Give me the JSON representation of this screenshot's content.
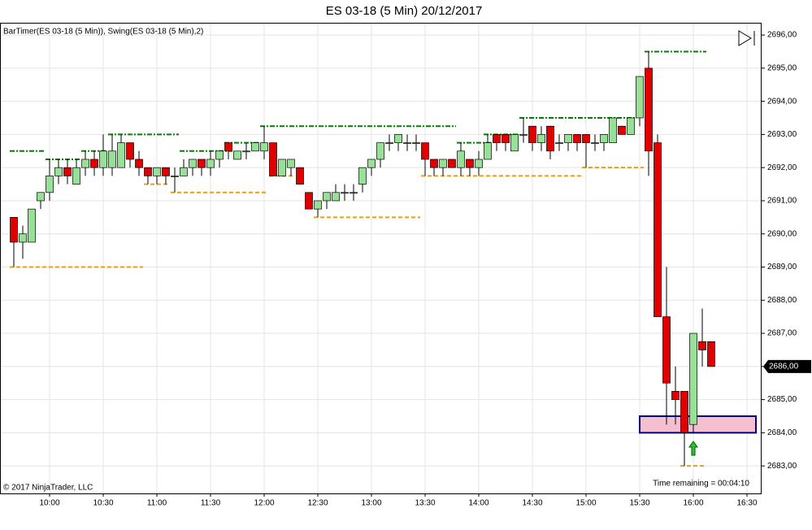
{
  "chart_data": {
    "type": "candlestick",
    "title": "ES 03-18 (5 Min)  20/12/2017",
    "indicator_label": "BarTimer(ES 03-18 (5 Min)), Swing(ES 03-18 (5 Min),2)",
    "copyright": "© 2017 NinjaTrader, LLC",
    "timer_text": "Time remaining = 00:04:10",
    "categories": [
      null,
      null,
      null,
      null,
      "10:00",
      null,
      null,
      null,
      null,
      null,
      "10:30",
      null,
      null,
      null,
      null,
      null,
      "11:00",
      null,
      null,
      null,
      null,
      null,
      "11:30",
      null,
      null,
      null,
      null,
      null,
      "12:00",
      null,
      null,
      null,
      null,
      null,
      "12:30",
      null,
      null,
      null,
      null,
      null,
      "13:00",
      null,
      null,
      null,
      null,
      null,
      "13:30",
      null,
      null,
      null,
      null,
      null,
      "14:00",
      null,
      null,
      null,
      null,
      null,
      "14:30",
      null,
      null,
      null,
      null,
      null,
      "15:00",
      null,
      null,
      null,
      null,
      null,
      "15:30",
      null,
      null,
      null,
      null,
      null,
      "16:00",
      null,
      null,
      null,
      null,
      null,
      "16:30"
    ],
    "open": [
      2690.5,
      2689.75,
      2689.75,
      2691.0,
      2691.25,
      2691.75,
      2692.0,
      2691.5,
      2692.0,
      2692.25,
      2692.0,
      2692.0,
      2692.0,
      2692.75,
      2692.25,
      2692.0,
      2691.75,
      2692.0,
      2691.75,
      2691.75,
      2692.0,
      2692.25,
      2692.0,
      2692.25,
      2692.75,
      2692.25,
      2692.5,
      2692.5,
      2692.5,
      2692.75,
      2691.75,
      2692.0,
      2692.0,
      2691.25,
      2690.75,
      2691.0,
      2691.0,
      2691.25,
      2691.25,
      2691.5,
      2692.0,
      2692.25,
      2692.75,
      2692.75,
      2692.75,
      2692.75,
      2692.75,
      2692.25,
      2692.0,
      2692.25,
      2692.0,
      2692.25,
      2692.0,
      2692.25,
      2693.0,
      2693.0,
      2692.5,
      2693.0,
      2693.25,
      2692.75,
      2693.25,
      2692.75,
      2692.75,
      2693.0,
      2693.0,
      2692.75,
      2692.75,
      2692.75,
      2693.25,
      2693.0,
      2693.5,
      2695.0,
      2692.75,
      2687.5,
      2685.25,
      2685.25,
      2684.25,
      2686.75,
      2686.75,
      null,
      null,
      null,
      null
    ],
    "high": [
      2690.5,
      2690.25,
      2690.75,
      2691.25,
      2692.25,
      2692.25,
      2692.25,
      2692.25,
      2692.5,
      2692.5,
      2693.0,
      2693.0,
      2693.0,
      2692.75,
      2692.5,
      2692.0,
      2692.0,
      2692.0,
      2692.0,
      2692.25,
      2692.25,
      2692.25,
      2692.5,
      2692.5,
      2692.75,
      2692.5,
      2692.75,
      2692.75,
      2693.25,
      2692.75,
      2692.25,
      2692.25,
      2692.0,
      2691.25,
      2691.0,
      2691.25,
      2691.5,
      2691.5,
      2691.5,
      2692.0,
      2692.25,
      2692.75,
      2693.0,
      2693.0,
      2693.0,
      2693.0,
      2692.75,
      2692.25,
      2692.25,
      2692.25,
      2692.75,
      2692.25,
      2692.5,
      2693.0,
      2693.0,
      2693.0,
      2693.0,
      2693.5,
      2693.25,
      2693.25,
      2693.25,
      2693.0,
      2693.0,
      2693.0,
      2693.0,
      2693.0,
      2693.0,
      2693.5,
      2693.25,
      2693.5,
      2694.75,
      2695.5,
      2693.0,
      2689.0,
      2686.0,
      2685.25,
      2687.0,
      2687.75,
      2686.75,
      null,
      null,
      null,
      null
    ],
    "low": [
      2689.0,
      2689.25,
      2689.75,
      2690.75,
      2691.0,
      2691.5,
      2691.5,
      2691.5,
      2691.75,
      2691.75,
      2691.75,
      2691.75,
      2692.0,
      2692.0,
      2691.75,
      2691.5,
      2691.5,
      2691.5,
      2691.25,
      2691.75,
      2691.75,
      2691.75,
      2691.75,
      2692.0,
      2692.25,
      2692.25,
      2692.25,
      2692.5,
      2692.25,
      2691.75,
      2691.75,
      2691.75,
      2691.5,
      2690.75,
      2690.5,
      2690.75,
      2691.0,
      2691.0,
      2691.0,
      2691.25,
      2691.75,
      2692.0,
      2692.5,
      2692.5,
      2692.5,
      2692.5,
      2691.75,
      2691.75,
      2691.75,
      2692.0,
      2691.75,
      2691.75,
      2691.75,
      2692.25,
      2692.5,
      2692.5,
      2692.5,
      2692.75,
      2692.5,
      2692.5,
      2692.25,
      2692.5,
      2692.5,
      2692.5,
      2692.0,
      2692.5,
      2692.5,
      2692.75,
      2693.0,
      2693.0,
      2693.25,
      2691.75,
      2687.5,
      2684.25,
      2684.25,
      2683.0,
      2684.0,
      2686.0,
      2686.0,
      null,
      null,
      null,
      null
    ],
    "close": [
      2689.75,
      2690.0,
      2690.75,
      2691.25,
      2691.75,
      2692.0,
      2691.75,
      2692.0,
      2692.25,
      2692.0,
      2692.5,
      2692.5,
      2692.75,
      2692.25,
      2692.0,
      2691.75,
      2692.0,
      2691.75,
      2691.75,
      2692.0,
      2692.25,
      2692.0,
      2692.25,
      2692.5,
      2692.5,
      2692.5,
      2692.5,
      2692.75,
      2692.75,
      2691.75,
      2692.25,
      2692.25,
      2691.5,
      2690.75,
      2691.0,
      2691.25,
      2691.25,
      2691.25,
      2691.25,
      2692.0,
      2692.25,
      2692.75,
      2692.75,
      2693.0,
      2692.75,
      2692.75,
      2692.25,
      2692.0,
      2692.25,
      2692.0,
      2692.5,
      2692.0,
      2692.25,
      2692.75,
      2692.75,
      2692.75,
      2693.0,
      2693.0,
      2692.75,
      2693.0,
      2692.5,
      2692.75,
      2693.0,
      2692.75,
      2692.75,
      2692.75,
      2693.0,
      2693.5,
      2693.0,
      2693.5,
      2694.75,
      2692.5,
      2687.5,
      2685.5,
      2685.0,
      2684.0,
      2687.0,
      2686.5,
      2686.0,
      null,
      null,
      null,
      null
    ],
    "up_color": "#98e098",
    "down_color": "#e00000",
    "swing_highs": [
      {
        "value": 2692.5,
        "start_index": 0,
        "end_index": 3
      },
      {
        "value": 2692.25,
        "start_index": 4,
        "end_index": 7
      },
      {
        "value": 2692.5,
        "start_index": 8,
        "end_index": 10
      },
      {
        "value": 2693.0,
        "start_index": 11,
        "end_index": 18
      },
      {
        "value": 2692.5,
        "start_index": 19,
        "end_index": 24
      },
      {
        "value": 2692.75,
        "start_index": 24,
        "end_index": 27
      },
      {
        "value": 2693.25,
        "start_index": 28,
        "end_index": 49
      },
      {
        "value": 2692.75,
        "start_index": 50,
        "end_index": 53
      },
      {
        "value": 2693.0,
        "start_index": 53,
        "end_index": 56
      },
      {
        "value": 2693.5,
        "start_index": 57,
        "end_index": 69
      },
      {
        "value": 2695.5,
        "start_index": 71,
        "end_index": 77
      }
    ],
    "swing_lows": [
      {
        "value": 2689.0,
        "start_index": 0,
        "end_index": 14
      },
      {
        "value": 2691.5,
        "start_index": 15,
        "end_index": 17
      },
      {
        "value": 2691.25,
        "start_index": 18,
        "end_index": 28
      },
      {
        "value": 2691.75,
        "start_index": 29,
        "end_index": 31
      },
      {
        "value": 2690.5,
        "start_index": 34,
        "end_index": 45
      },
      {
        "value": 2691.75,
        "start_index": 46,
        "end_index": 63
      },
      {
        "value": 2692.0,
        "start_index": 64,
        "end_index": 70
      },
      {
        "value": 2683.0,
        "start_index": 75,
        "end_index": 77
      }
    ],
    "swing_high_color": "#008000",
    "swing_low_color": "#e0a020",
    "zone": {
      "low": 2684.0,
      "high": 2684.5,
      "start_index": 70,
      "color": "#f4c0d0",
      "border_color": "#000080"
    },
    "last_price": {
      "value": 2686,
      "label": "2686,00"
    },
    "ylim": [
      2682.17,
      2696.37
    ],
    "yticks": [
      {
        "value": 2683,
        "label": "2683,00"
      },
      {
        "value": 2684,
        "label": "2684,00"
      },
      {
        "value": 2685,
        "label": "2685,00"
      },
      {
        "value": 2686,
        "label": "2686,00"
      },
      {
        "value": 2687,
        "label": "2687,00"
      },
      {
        "value": 2688,
        "label": "2688,00"
      },
      {
        "value": 2689,
        "label": "2689,00"
      },
      {
        "value": 2690,
        "label": "2690,00"
      },
      {
        "value": 2691,
        "label": "2691,00"
      },
      {
        "value": 2692,
        "label": "2692,00"
      },
      {
        "value": 2693,
        "label": "2693,00"
      },
      {
        "value": 2694,
        "label": "2694,00"
      },
      {
        "value": 2695,
        "label": "2695,00"
      },
      {
        "value": 2696,
        "label": "2696,00"
      }
    ],
    "grid": true
  }
}
